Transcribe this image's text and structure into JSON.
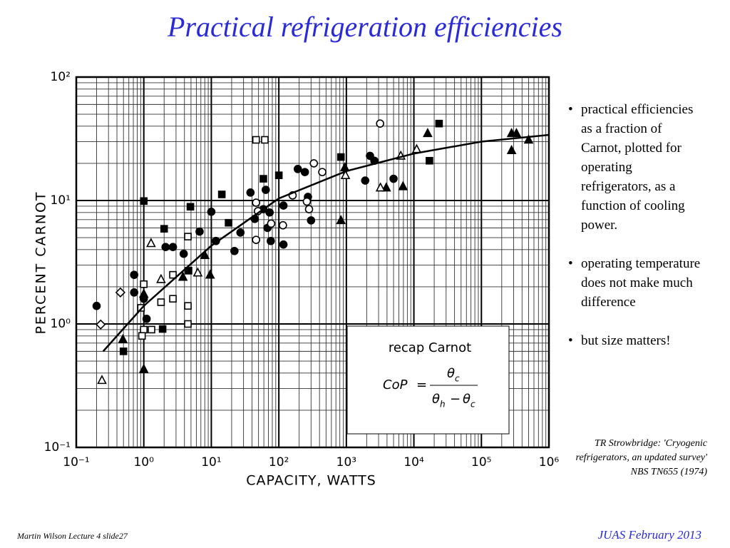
{
  "slide": {
    "title": "Practical refrigeration efficiencies",
    "bullets": [
      "practical efficiencies as a fraction of Carnot, plotted for operating refrigerators, as a function of cooling power.",
      "operating temperature does not make much difference",
      "but size matters!"
    ],
    "citation": "TR Strowbridge: 'Cryogenic refrigerators, an updated survey' NBS TN655 (1974)",
    "footer_left": "Martin Wilson Lecture 4 slide27",
    "footer_right": "JUAS February 2013",
    "inset": {
      "title": "recap Carnot",
      "lhs": "CoP",
      "equals": "=",
      "theta": "θ",
      "sub_c": "c",
      "sub_h": "h",
      "minus": "−"
    }
  },
  "chart_data": {
    "type": "scatter",
    "x_label": "CAPACITY, WATTS",
    "y_label": "PERCENT CARNOT",
    "x_log": true,
    "y_log": true,
    "grid": true,
    "minor_grid": true,
    "xlim": [
      0.1,
      1000000
    ],
    "ylim": [
      0.1,
      100
    ],
    "xticks": [
      {
        "value": 0.1,
        "label": "10⁻¹"
      },
      {
        "value": 1,
        "label": "10⁰"
      },
      {
        "value": 10,
        "label": "10¹"
      },
      {
        "value": 100,
        "label": "10²"
      },
      {
        "value": 1000,
        "label": "10³"
      },
      {
        "value": 10000,
        "label": "10⁴"
      },
      {
        "value": 100000,
        "label": "10⁵"
      },
      {
        "value": 1000000,
        "label": "10⁶"
      }
    ],
    "yticks": [
      {
        "value": 0.1,
        "label": "10⁻¹"
      },
      {
        "value": 1,
        "label": "10⁰"
      },
      {
        "value": 10,
        "label": "10¹"
      },
      {
        "value": 100,
        "label": "10²"
      }
    ],
    "series": [
      {
        "marker": "circle",
        "filled": true,
        "color": "#000000",
        "x": [
          0.2,
          0.72,
          0.72,
          1,
          1.1,
          2.1,
          2.7,
          3.9,
          6.7,
          10,
          11.7,
          22,
          27,
          38,
          44,
          59,
          64,
          73,
          68,
          117,
          117,
          191,
          243,
          270,
          300,
          2240,
          2600,
          1900,
          5000,
          76
        ],
        "values": [
          1.4,
          2.5,
          1.8,
          1.6,
          1.1,
          4.2,
          4.2,
          3.7,
          5.6,
          8.1,
          4.7,
          3.9,
          5.5,
          11.6,
          7.1,
          8.5,
          12.2,
          8,
          6,
          4.4,
          9.1,
          18,
          17,
          10.7,
          6.9,
          23,
          21,
          14.5,
          15,
          4.7
        ]
      },
      {
        "marker": "circle",
        "filled": false,
        "color": "#000000",
        "x": [
          3160,
          330,
          440,
          280,
          260,
          160,
          115,
          77,
          46,
          46,
          49
        ],
        "values": [
          42,
          20,
          17,
          8.5,
          9.8,
          11,
          6.3,
          6.5,
          9.6,
          4.8,
          8.2
        ]
      },
      {
        "marker": "square",
        "filled": true,
        "color": "#000000",
        "x": [
          1,
          2,
          4.9,
          14.3,
          18,
          59,
          100,
          830,
          23600,
          17000,
          4.6,
          1.9,
          0.5
        ],
        "values": [
          9.9,
          5.9,
          8.9,
          11.2,
          6.6,
          15,
          16,
          22.5,
          42,
          21,
          2.7,
          0.91,
          0.6
        ]
      },
      {
        "marker": "square",
        "filled": false,
        "color": "#000000",
        "x": [
          1,
          0.91,
          1,
          1.3,
          1.8,
          2.7,
          2.7,
          4.5,
          4.5,
          4.5,
          46,
          62,
          0.94
        ],
        "values": [
          2.1,
          1.35,
          0.9,
          0.9,
          1.5,
          2.5,
          1.6,
          1.4,
          1,
          5.1,
          31,
          31,
          0.8
        ]
      },
      {
        "marker": "triangle",
        "filled": true,
        "color": "#000000",
        "x": [
          1,
          1,
          3.8,
          8,
          9.6,
          830,
          950,
          3900,
          6900,
          16000,
          280000,
          330000,
          500000,
          280000,
          0.49
        ],
        "values": [
          0.43,
          1.75,
          2.4,
          3.6,
          2.5,
          6.9,
          18.5,
          12.7,
          13,
          35,
          35,
          35,
          31,
          25.5,
          0.75
        ]
      },
      {
        "marker": "triangle",
        "filled": false,
        "color": "#000000",
        "x": [
          0.24,
          1.28,
          1.8,
          6.3,
          970,
          3200,
          6400,
          11000
        ],
        "values": [
          0.35,
          4.5,
          2.3,
          2.6,
          16,
          12.7,
          23,
          26
        ]
      },
      {
        "marker": "diamond",
        "filled": false,
        "color": "#000000",
        "x": [
          0.23,
          0.45
        ],
        "values": [
          0.99,
          1.8
        ]
      },
      {
        "marker": "line",
        "filled": false,
        "color": "#000000",
        "x": [
          0.25,
          1,
          10,
          100,
          1000,
          10000,
          100000,
          1000000
        ],
        "values": [
          0.6,
          1.4,
          4.3,
          10.4,
          17.3,
          24,
          30,
          34
        ]
      }
    ]
  }
}
